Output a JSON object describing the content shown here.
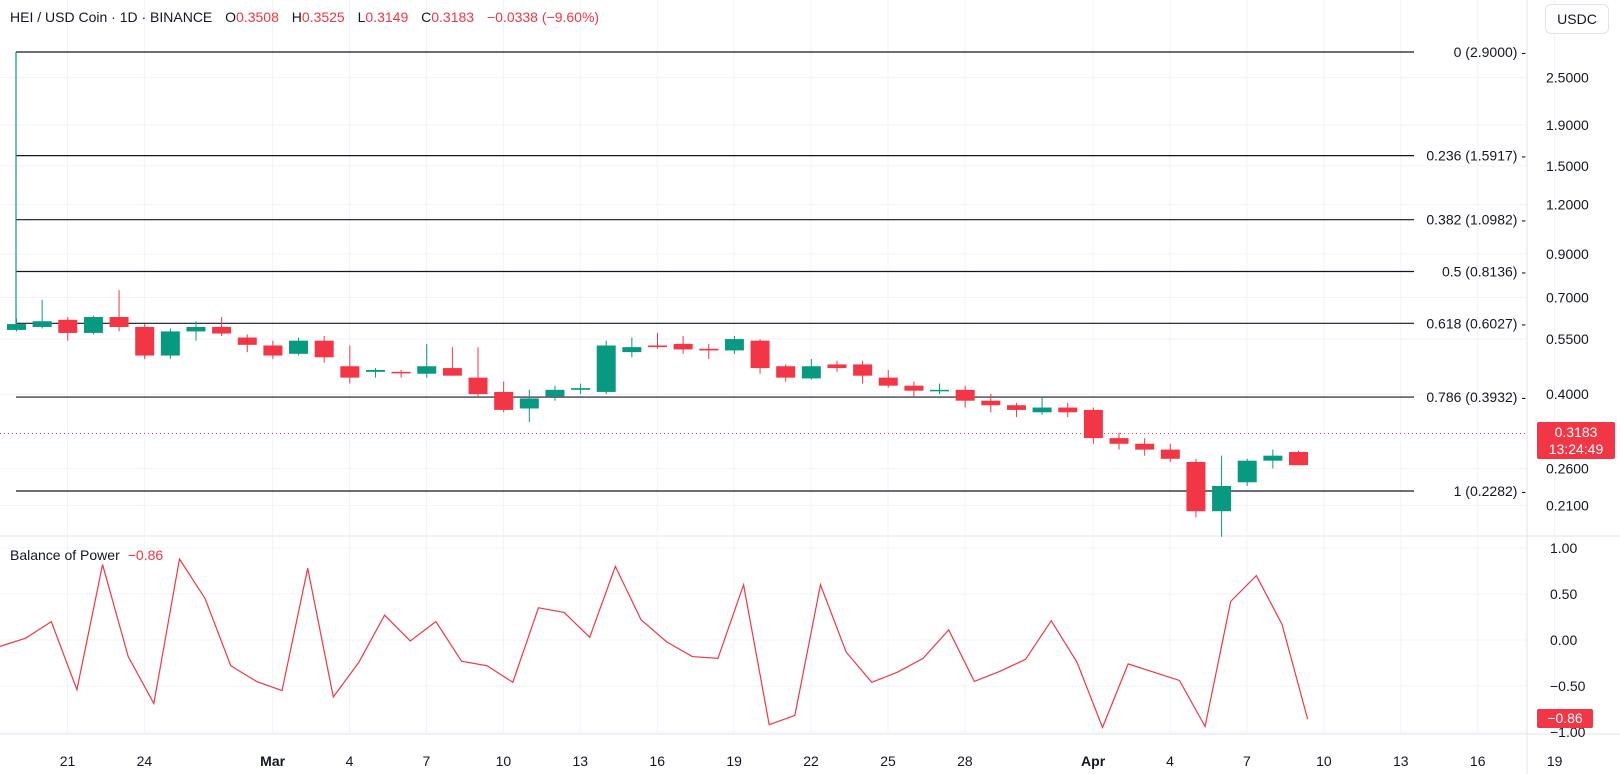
{
  "header": {
    "symbol": "HEI / USD Coin · 1D · BINANCE",
    "o_label": "O",
    "o_value": "0.3508",
    "h_label": "H",
    "h_value": "0.3525",
    "l_label": "L",
    "l_value": "0.3149",
    "c_label": "C",
    "c_value": "0.3183",
    "change": "−0.0338 (−9.60%)"
  },
  "currency_button": "USDC",
  "last_price": {
    "value": "0.3183",
    "countdown": "13:24:49"
  },
  "colors": {
    "up": "#089981",
    "down": "#f23645",
    "grid": "#f0f3fa",
    "fib": "#131722"
  },
  "chart_data": [
    {
      "type": "candlestick",
      "title": "HEI / USD Coin · 1D · BINANCE",
      "y_scale": "log",
      "price_ticks": [
        "2.5000",
        "1.9000",
        "1.5000",
        "1.2000",
        "0.9000",
        "0.7000",
        "0.5500",
        "0.4000",
        "0.2600",
        "0.2100"
      ],
      "x_ticks": [
        "21",
        "24",
        "Mar",
        "4",
        "7",
        "10",
        "13",
        "16",
        "19",
        "22",
        "25",
        "28",
        "Apr",
        "4",
        "7",
        "10",
        "13",
        "16",
        "19"
      ],
      "fib_levels": [
        {
          "label": "0 (2.9000)",
          "value": 2.9
        },
        {
          "label": "0.236 (1.5917)",
          "value": 1.5917
        },
        {
          "label": "0.382 (1.0982)",
          "value": 1.0982
        },
        {
          "label": "0.5 (0.8136)",
          "value": 0.8136
        },
        {
          "label": "0.618 (0.6027)",
          "value": 0.6027
        },
        {
          "label": "0.786 (0.3932)",
          "value": 0.3932
        },
        {
          "label": "1 (0.2282)",
          "value": 0.2282
        }
      ],
      "candles": [
        {
          "o": 0.58,
          "h": 0.62,
          "l": 0.575,
          "c": 0.6
        },
        {
          "o": 0.59,
          "h": 0.69,
          "l": 0.585,
          "c": 0.61
        },
        {
          "o": 0.615,
          "h": 0.625,
          "l": 0.545,
          "c": 0.57
        },
        {
          "o": 0.57,
          "h": 0.63,
          "l": 0.565,
          "c": 0.625
        },
        {
          "o": 0.625,
          "h": 0.73,
          "l": 0.575,
          "c": 0.59
        },
        {
          "o": 0.59,
          "h": 0.6,
          "l": 0.49,
          "c": 0.5
        },
        {
          "o": 0.5,
          "h": 0.585,
          "l": 0.49,
          "c": 0.575
        },
        {
          "o": 0.575,
          "h": 0.61,
          "l": 0.545,
          "c": 0.59
        },
        {
          "o": 0.59,
          "h": 0.625,
          "l": 0.56,
          "c": 0.568
        },
        {
          "o": 0.555,
          "h": 0.565,
          "l": 0.51,
          "c": 0.532
        },
        {
          "o": 0.53,
          "h": 0.545,
          "l": 0.49,
          "c": 0.5
        },
        {
          "o": 0.505,
          "h": 0.555,
          "l": 0.5,
          "c": 0.545
        },
        {
          "o": 0.545,
          "h": 0.56,
          "l": 0.48,
          "c": 0.495
        },
        {
          "o": 0.47,
          "h": 0.53,
          "l": 0.425,
          "c": 0.44
        },
        {
          "o": 0.455,
          "h": 0.465,
          "l": 0.44,
          "c": 0.46
        },
        {
          "o": 0.455,
          "h": 0.46,
          "l": 0.44,
          "c": 0.453
        },
        {
          "o": 0.45,
          "h": 0.535,
          "l": 0.44,
          "c": 0.47
        },
        {
          "o": 0.465,
          "h": 0.525,
          "l": 0.445,
          "c": 0.445
        },
        {
          "o": 0.44,
          "h": 0.525,
          "l": 0.395,
          "c": 0.4
        },
        {
          "o": 0.405,
          "h": 0.43,
          "l": 0.36,
          "c": 0.365
        },
        {
          "o": 0.368,
          "h": 0.41,
          "l": 0.34,
          "c": 0.39
        },
        {
          "o": 0.395,
          "h": 0.42,
          "l": 0.385,
          "c": 0.41
        },
        {
          "o": 0.41,
          "h": 0.425,
          "l": 0.4,
          "c": 0.414
        },
        {
          "o": 0.405,
          "h": 0.545,
          "l": 0.4,
          "c": 0.53
        },
        {
          "o": 0.51,
          "h": 0.555,
          "l": 0.495,
          "c": 0.525
        },
        {
          "o": 0.53,
          "h": 0.57,
          "l": 0.52,
          "c": 0.525
        },
        {
          "o": 0.535,
          "h": 0.56,
          "l": 0.505,
          "c": 0.518
        },
        {
          "o": 0.52,
          "h": 0.535,
          "l": 0.49,
          "c": 0.515
        },
        {
          "o": 0.515,
          "h": 0.56,
          "l": 0.505,
          "c": 0.55
        },
        {
          "o": 0.545,
          "h": 0.55,
          "l": 0.45,
          "c": 0.465
        },
        {
          "o": 0.47,
          "h": 0.475,
          "l": 0.43,
          "c": 0.44
        },
        {
          "o": 0.438,
          "h": 0.49,
          "l": 0.435,
          "c": 0.47
        },
        {
          "o": 0.475,
          "h": 0.485,
          "l": 0.455,
          "c": 0.465
        },
        {
          "o": 0.475,
          "h": 0.485,
          "l": 0.425,
          "c": 0.445
        },
        {
          "o": 0.44,
          "h": 0.46,
          "l": 0.415,
          "c": 0.42
        },
        {
          "o": 0.42,
          "h": 0.43,
          "l": 0.395,
          "c": 0.408
        },
        {
          "o": 0.41,
          "h": 0.425,
          "l": 0.4,
          "c": 0.41
        },
        {
          "o": 0.41,
          "h": 0.42,
          "l": 0.37,
          "c": 0.385
        },
        {
          "o": 0.385,
          "h": 0.4,
          "l": 0.36,
          "c": 0.375
        },
        {
          "o": 0.375,
          "h": 0.38,
          "l": 0.35,
          "c": 0.365
        },
        {
          "o": 0.36,
          "h": 0.395,
          "l": 0.355,
          "c": 0.37
        },
        {
          "o": 0.37,
          "h": 0.38,
          "l": 0.35,
          "c": 0.36
        },
        {
          "o": 0.365,
          "h": 0.37,
          "l": 0.3,
          "c": 0.31
        },
        {
          "o": 0.31,
          "h": 0.32,
          "l": 0.29,
          "c": 0.3
        },
        {
          "o": 0.3,
          "h": 0.31,
          "l": 0.28,
          "c": 0.29
        },
        {
          "o": 0.29,
          "h": 0.3,
          "l": 0.27,
          "c": 0.275
        },
        {
          "o": 0.27,
          "h": 0.275,
          "l": 0.196,
          "c": 0.203
        },
        {
          "o": 0.203,
          "h": 0.28,
          "l": 0.175,
          "c": 0.235
        },
        {
          "o": 0.24,
          "h": 0.275,
          "l": 0.235,
          "c": 0.272
        },
        {
          "o": 0.272,
          "h": 0.29,
          "l": 0.26,
          "c": 0.28
        },
        {
          "o": 0.286,
          "h": 0.288,
          "l": 0.265,
          "c": 0.265
        }
      ],
      "wick": {
        "o": 0.59,
        "h": 2.9,
        "l": 0.588,
        "c": 0.6
      }
    },
    {
      "type": "line",
      "title": "Balance of Power",
      "last_value": "−0.86",
      "y_ticks": [
        "1.00",
        "0.50",
        "0.00",
        "−0.50",
        "−1.00"
      ],
      "ylim": [
        -1.0,
        1.0
      ],
      "values": [
        -0.07,
        0.02,
        0.2,
        -0.54,
        0.82,
        -0.18,
        -0.69,
        0.88,
        0.45,
        -0.28,
        -0.45,
        -0.55,
        0.78,
        -0.62,
        -0.24,
        0.27,
        -0.01,
        0.2,
        -0.23,
        -0.28,
        -0.46,
        0.35,
        0.3,
        0.03,
        0.8,
        0.22,
        -0.02,
        -0.18,
        -0.2,
        0.6,
        -0.92,
        -0.82,
        0.6,
        -0.13,
        -0.46,
        -0.35,
        -0.2,
        0.11,
        -0.45,
        -0.34,
        -0.21,
        0.21,
        -0.24,
        -0.95,
        -0.26,
        -0.35,
        -0.44,
        -0.94,
        0.42,
        0.7,
        0.17,
        -0.86
      ]
    }
  ]
}
